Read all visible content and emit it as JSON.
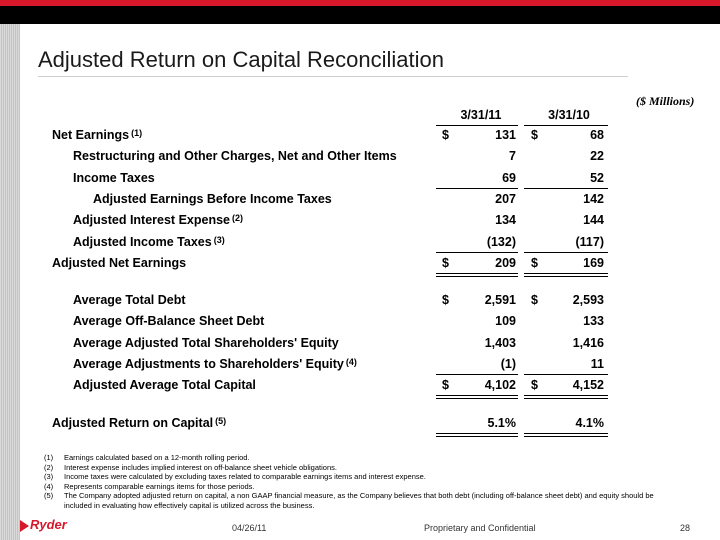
{
  "title": "Adjusted Return on Capital Reconciliation",
  "units": "($ Millions)",
  "columns": [
    "3/31/11",
    "3/31/10"
  ],
  "rows": [
    {
      "label": "Net Earnings",
      "sup": "(1)",
      "indent": 0,
      "dollar": true,
      "values": [
        "131",
        "68"
      ],
      "rule": "none"
    },
    {
      "label": "Restructuring and Other Charges, Net and Other Items",
      "sup": "",
      "indent": 1,
      "dollar": false,
      "values": [
        "7",
        "22"
      ],
      "rule": "none"
    },
    {
      "label": "Income Taxes",
      "sup": "",
      "indent": 1,
      "dollar": false,
      "values": [
        "69",
        "52"
      ],
      "rule": "single"
    },
    {
      "label": "Adjusted Earnings Before Income Taxes",
      "sup": "",
      "indent": 2,
      "dollar": false,
      "values": [
        "207",
        "142"
      ],
      "rule": "none"
    },
    {
      "label": "Adjusted Interest Expense",
      "sup": "(2)",
      "indent": 1,
      "dollar": false,
      "values": [
        "134",
        "144"
      ],
      "rule": "none"
    },
    {
      "label": "Adjusted Income Taxes",
      "sup": "(3)",
      "indent": 1,
      "dollar": false,
      "values": [
        "(132)",
        "(117)"
      ],
      "rule": "single"
    },
    {
      "label": "Adjusted Net Earnings",
      "sup": "",
      "indent": 0,
      "dollar": true,
      "values": [
        "209",
        "169"
      ],
      "rule": "double"
    },
    {
      "label": "Average Total Debt",
      "sup": "",
      "indent": 1,
      "dollar": true,
      "values": [
        "2,591",
        "2,593"
      ],
      "rule": "none",
      "gap": true
    },
    {
      "label": "Average Off-Balance Sheet Debt",
      "sup": "",
      "indent": 1,
      "dollar": false,
      "values": [
        "109",
        "133"
      ],
      "rule": "none"
    },
    {
      "label": "Average Adjusted Total Shareholders' Equity",
      "sup": "",
      "indent": 1,
      "dollar": false,
      "values": [
        "1,403",
        "1,416"
      ],
      "rule": "none"
    },
    {
      "label": "Average Adjustments to Shareholders' Equity",
      "sup": "(4)",
      "indent": 1,
      "dollar": false,
      "values": [
        "(1)",
        "11"
      ],
      "rule": "single"
    },
    {
      "label": "Adjusted Average Total Capital",
      "sup": "",
      "indent": 1,
      "dollar": true,
      "values": [
        "4,102",
        "4,152"
      ],
      "rule": "double"
    },
    {
      "label": "Adjusted Return on Capital",
      "sup": "(5)",
      "indent": 0,
      "dollar": false,
      "values": [
        "5.1%",
        "4.1%"
      ],
      "rule": "double",
      "gap": true
    }
  ],
  "dollar_sign": "$",
  "footnotes": [
    {
      "num": "(1)",
      "text": "Earnings calculated based on a 12-month rolling period."
    },
    {
      "num": "(2)",
      "text": "Interest expense includes implied interest on off-balance sheet vehicle obligations."
    },
    {
      "num": "(3)",
      "text": "Income taxes were calculated by excluding taxes related to comparable earnings items and interest expense."
    },
    {
      "num": "(4)",
      "text": "Represents comparable earnings items for those periods."
    },
    {
      "num": "(5)",
      "text": "The Company adopted adjusted return on capital, a non GAAP financial measure, as the Company believes that both debt (including off-balance sheet debt) and equity should be included in evaluating how effectively capital is utilized across the business."
    }
  ],
  "footer": {
    "logo": "Ryder",
    "date": "04/26/11",
    "confidential": "Proprietary and Confidential",
    "page": "28"
  },
  "colors": {
    "brand_red": "#d7182a",
    "header_black": "#000000"
  }
}
